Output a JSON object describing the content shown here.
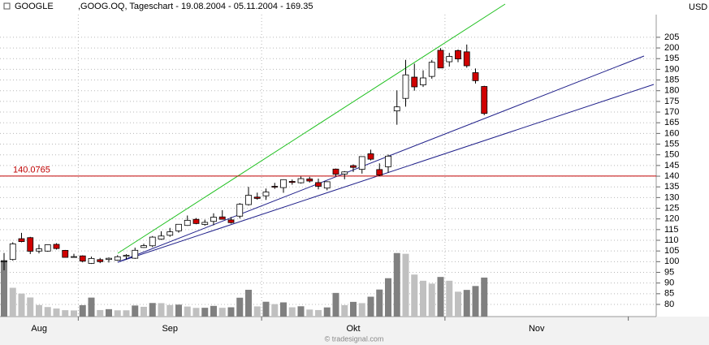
{
  "chart_data": {
    "type": "candlestick",
    "title": "GOOGLE",
    "subtitle": ",GOOG.OQ, Tageschart - 19.08.2004 - 05.11.2004 - 169.35",
    "y_axis_label": "USD",
    "footer": "© tradesignal.com",
    "months": [
      "Aug",
      "Sep",
      "Okt",
      "Nov"
    ],
    "ylim": [
      74.3,
      215.6
    ],
    "yticks": [
      80,
      85,
      90,
      95,
      100,
      105,
      110,
      115,
      120,
      125,
      130,
      135,
      140,
      145,
      150,
      155,
      160,
      165,
      170,
      175,
      180,
      185,
      190,
      195,
      200,
      205
    ],
    "grid": true,
    "level": {
      "value": 140.0765,
      "color": "#c00000"
    },
    "up_color": "#ffffff",
    "down_color": "#d00000",
    "candles": {
      "open": [
        100.0,
        101.01,
        110.75,
        111.24,
        104.96,
        104.95,
        108.1,
        105.28,
        102.32,
        102.7,
        99.19,
        100.95,
        101.01,
        100.74,
        102.5,
        101.6,
        106.63,
        107.44,
        110.56,
        112.34,
        114.42,
        116.95,
        119.81,
        117.4,
        118.84,
        120.94,
        119.56,
        121.3,
        126.7,
        130.21,
        130.8,
        135.25,
        134.66,
        137.55,
        136.92,
        138.72,
        137.0,
        134.44,
        143.32,
        141.01,
        144.93,
        143.2,
        150.5,
        143.1,
        144.4,
        170.54,
        176.4,
        186.34,
        182.72,
        186.68,
        198.89,
        193.55,
        198.78,
        198.18,
        188.44,
        181.98
      ],
      "high": [
        104.06,
        109.08,
        113.48,
        111.6,
        108.0,
        107.95,
        108.62,
        105.49,
        103.71,
        102.97,
        102.37,
        101.74,
        102.0,
        103.03,
        103.5,
        106.56,
        108.41,
        112.0,
        114.23,
        115.8,
        117.49,
        121.6,
        120.42,
        119.67,
        122.63,
        124.1,
        120.88,
        127.4,
        135.02,
        132.3,
        134.24,
        136.87,
        138.53,
        138.45,
        139.88,
        139.68,
        138.86,
        137.61,
        143.55,
        142.38,
        145.5,
        149.2,
        152.4,
        146.0,
        150.13,
        180.17,
        194.43,
        192.64,
        189.52,
        194.39,
        199.95,
        197.67,
        199.25,
        201.6,
        190.4,
        182.3
      ],
      "low": [
        95.96,
        100.5,
        109.05,
        103.57,
        103.88,
        104.66,
        105.69,
        102.01,
        102.16,
        99.67,
        98.94,
        99.32,
        99.61,
        100.5,
        101.0,
        101.3,
        106.46,
        106.79,
        110.2,
        111.65,
        113.55,
        116.77,
        117.51,
        116.81,
        117.02,
        119.76,
        117.8,
        120.21,
        126.23,
        129.0,
        128.9,
        134.03,
        132.24,
        136.0,
        136.55,
        137.02,
        133.85,
        133.4,
        140.08,
        138.56,
        141.95,
        141.21,
        147.35,
        140.0,
        141.62,
        164.08,
        172.55,
        180.0,
        181.77,
        185.6,
        190.6,
        191.27,
        193.34,
        190.75,
        183.35,
        168.55
      ],
      "close": [
        100.34,
        108.31,
        109.4,
        104.87,
        106.0,
        107.91,
        106.15,
        102.01,
        102.37,
        100.25,
        101.51,
        100.01,
        101.58,
        102.3,
        102.97,
        105.33,
        107.5,
        111.49,
        112.0,
        113.97,
        117.49,
        119.36,
        117.84,
        118.38,
        120.82,
        119.83,
        118.26,
        126.86,
        131.08,
        129.6,
        132.58,
        135.06,
        138.37,
        137.08,
        138.85,
        137.73,
        135.26,
        137.4,
        140.9,
        142.0,
        144.11,
        149.16,
        147.94,
        140.49,
        149.38,
        172.43,
        187.4,
        181.8,
        185.97,
        193.3,
        190.64,
        196.03,
        194.87,
        191.67,
        184.7,
        169.35
      ]
    },
    "volume": [
      44.9,
      22.9,
      18.3,
      15.2,
      9.2,
      7.6,
      6.4,
      5.1,
      4.9,
      9.1,
      15.1,
      5.2,
      5.9,
      5.0,
      5.0,
      8.8,
      7.8,
      10.8,
      10.7,
      9.2,
      9.5,
      8.0,
      6.9,
      7.0,
      8.5,
      7.0,
      7.4,
      15.0,
      21.3,
      8.1,
      11.8,
      9.9,
      11.3,
      7.4,
      8.2,
      5.6,
      5.2,
      7.3,
      18.8,
      9.1,
      11.7,
      10.7,
      15.8,
      21.5,
      30.5,
      50.5,
      49.9,
      33.4,
      28.5,
      26.2,
      31.5,
      28.5,
      19.8,
      21.2,
      24.3,
      31.0
    ],
    "volume_lim": [
      0,
      240
    ],
    "volume_colors": [
      "#808080",
      "#c0c0c0"
    ]
  }
}
